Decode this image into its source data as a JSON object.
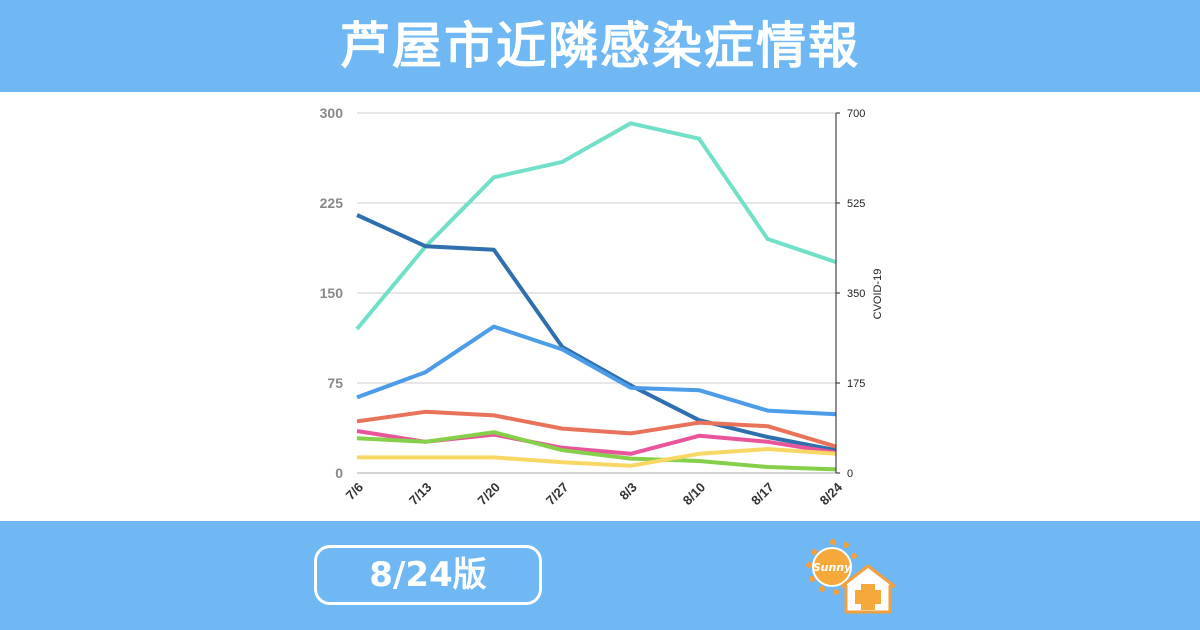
{
  "header": {
    "title": "芦屋市近隣感染症情報"
  },
  "footer": {
    "date_label": "8/24版",
    "logo_text": "Sunny"
  },
  "chart_data": {
    "type": "line",
    "categories": [
      "7/6",
      "7/13",
      "7/20",
      "7/27",
      "8/3",
      "8/10",
      "8/17",
      "8/24"
    ],
    "y_left": {
      "min": 0,
      "max": 300,
      "ticks": [
        "0",
        "75",
        "150",
        "225",
        "300"
      ]
    },
    "y_right": {
      "min": 0,
      "max": 700,
      "ticks": [
        "0",
        "175",
        "350",
        "525",
        "700"
      ],
      "label": "CVOID-19"
    },
    "grid": true,
    "series": [
      {
        "axis": "right",
        "color": "#72e0c8",
        "values": [
          280,
          440,
          575,
          605,
          680,
          650,
          455,
          410
        ]
      },
      {
        "axis": "left",
        "color": "#2f6fae",
        "values": [
          215,
          189,
          186,
          105,
          73,
          44,
          30,
          19
        ]
      },
      {
        "axis": "left",
        "color": "#4c9ce8",
        "values": [
          63,
          84,
          122,
          103,
          71,
          69,
          52,
          49
        ]
      },
      {
        "axis": "left",
        "color": "#e8735a",
        "values": [
          43,
          51,
          48,
          37,
          33,
          42,
          39,
          22
        ]
      },
      {
        "axis": "left",
        "color": "#e8559a",
        "values": [
          35,
          26,
          32,
          21,
          16,
          31,
          26,
          17
        ]
      },
      {
        "axis": "left",
        "color": "#86cf4a",
        "values": [
          29,
          26,
          34,
          19,
          12,
          10,
          5,
          3
        ]
      },
      {
        "axis": "left",
        "color": "#f7d864",
        "values": [
          13,
          13,
          13,
          9,
          6,
          16,
          20,
          16
        ]
      }
    ]
  }
}
